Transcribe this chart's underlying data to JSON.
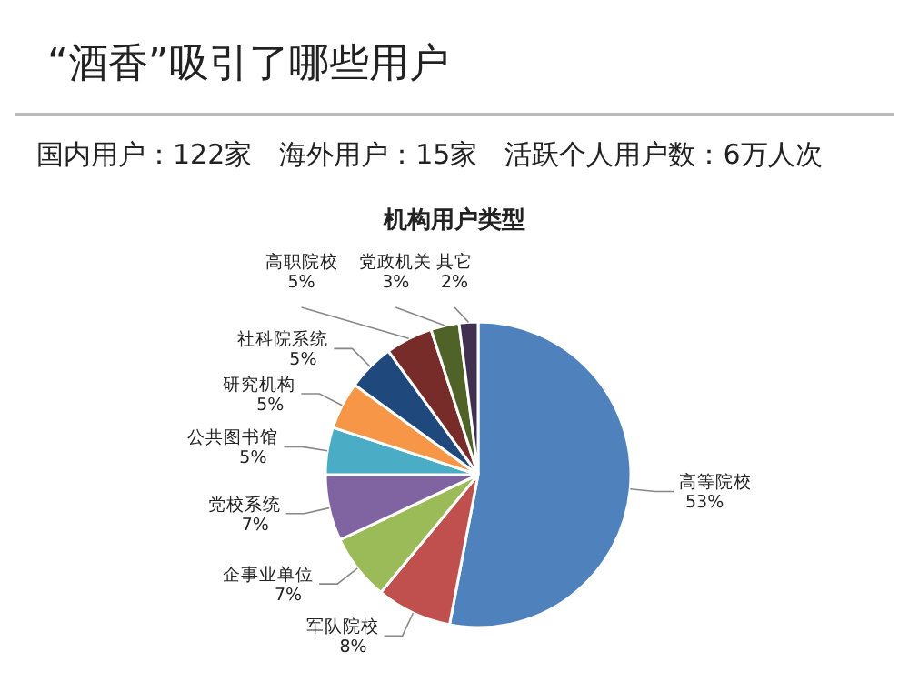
{
  "chart_data": {
    "type": "pie",
    "title": "“酒香”吸引了哪些用户",
    "subtitle": "国内用户：122家　海外用户：15家　活跃个人用户数：6万人次",
    "annotations": [
      "机构用户类型"
    ],
    "categories": [
      "高等院校",
      "军队院校",
      "企事业单位",
      "党校系统",
      "公共图书馆",
      "研究机构",
      "社科院系统",
      "高职院校",
      "党政机关",
      "其它"
    ],
    "values": [
      53,
      8,
      7,
      7,
      5,
      5,
      5,
      5,
      3,
      2
    ],
    "colors": [
      "#4f81bd",
      "#c0504d",
      "#9bbb59",
      "#8064a2",
      "#4bacc6",
      "#f79646",
      "#1f497d",
      "#772c2a",
      "#4f6228",
      "#403151"
    ],
    "value_labels": [
      "53%",
      "8%",
      "7%",
      "7%",
      "5%",
      "5%",
      "5%",
      "5%",
      "3%",
      "2%"
    ],
    "legend": false
  }
}
